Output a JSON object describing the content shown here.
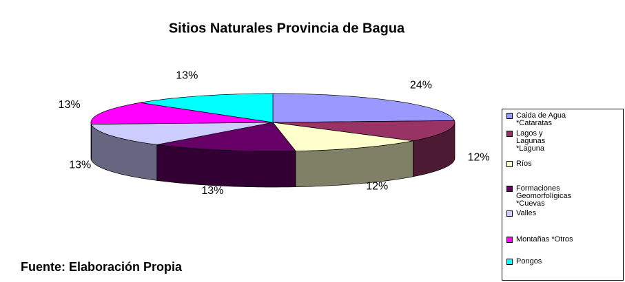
{
  "chart_data": {
    "type": "pie3d",
    "title": "Sitios Naturales Provincia de Bagua",
    "categories": [
      "Caida de Agua *Cataratas",
      "Lagos y Lagunas *Laguna",
      "Ríos",
      "Formaciones Geomorfolígicas *Cuevas",
      "Valles",
      "Montañas *Otros",
      "Pongos"
    ],
    "values": [
      24,
      12,
      12,
      13,
      13,
      13,
      13
    ],
    "value_labels": [
      "24%",
      "12%",
      "12%",
      "13%",
      "13%",
      "13%",
      "13%"
    ],
    "colors": [
      "#9999FF",
      "#993366",
      "#FFFFCC",
      "#660066",
      "#CCCCFF",
      "#FF00FF",
      "#00FFFF"
    ],
    "source": "Fuente: Elaboración Propia",
    "legend": "right"
  }
}
